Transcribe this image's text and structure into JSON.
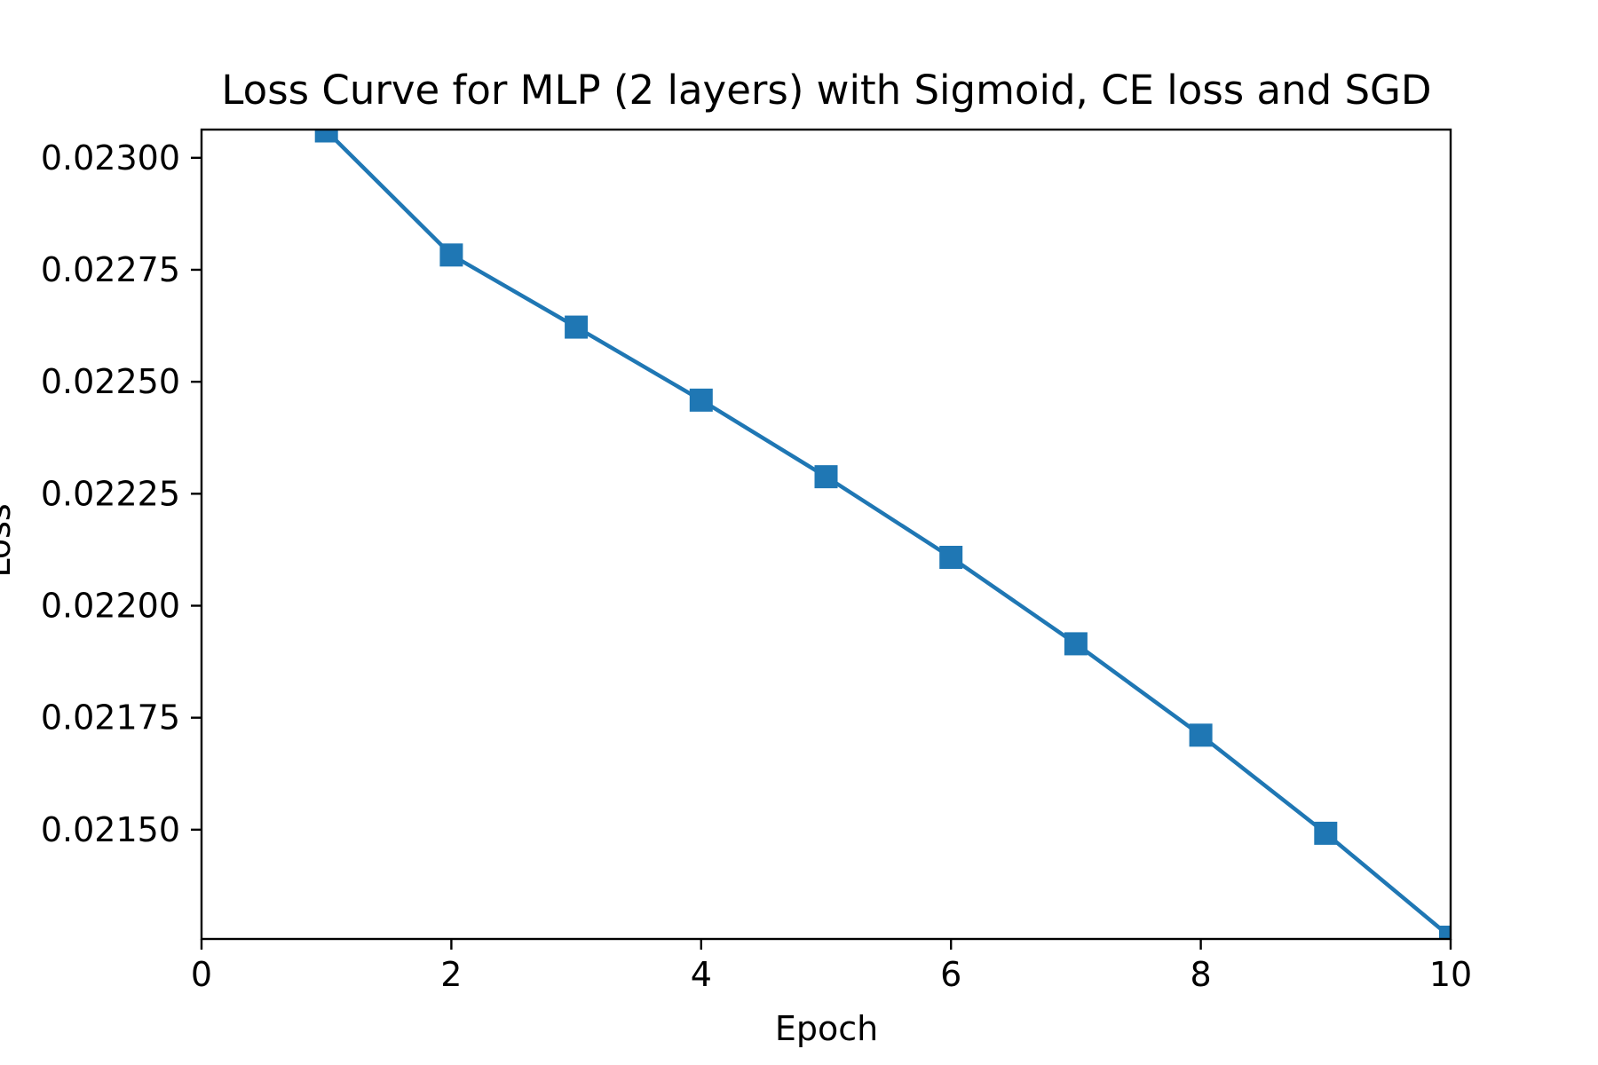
{
  "chart_data": {
    "type": "line",
    "title": "Loss Curve for MLP (2 layers) with Sigmoid, CE loss and SGD",
    "xlabel": "Epoch",
    "ylabel": "Loss",
    "xlim": [
      0,
      10
    ],
    "ylim": [
      0.021256,
      0.023063
    ],
    "x_ticks": [
      0,
      2,
      4,
      6,
      8,
      10
    ],
    "x_tick_labels": [
      "0",
      "2",
      "4",
      "6",
      "8",
      "10"
    ],
    "y_ticks": [
      0.0215,
      0.02175,
      0.022,
      0.02225,
      0.0225,
      0.02275,
      0.023
    ],
    "y_tick_labels": [
      "0.02150",
      "0.02175",
      "0.02200",
      "0.02225",
      "0.02250",
      "0.02275",
      "0.02300"
    ],
    "grid": false,
    "marker": "square",
    "series": [
      {
        "color": "#1f77b4",
        "x": [
          1,
          2,
          3,
          4,
          5,
          6,
          7,
          8,
          9,
          10
        ],
        "y": [
          0.02306,
          0.022783,
          0.022622,
          0.022459,
          0.022288,
          0.022108,
          0.021915,
          0.021711,
          0.021492,
          0.02126
        ]
      }
    ]
  }
}
